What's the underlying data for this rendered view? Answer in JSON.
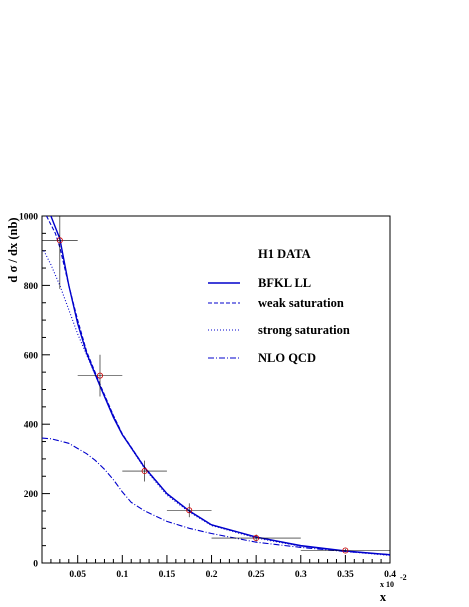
{
  "chart_data": {
    "type": "line",
    "title": "",
    "xlabel": "x",
    "ylabel": "d σ / dx (nb)",
    "x_multiplier_label": "x 10",
    "x_multiplier_exponent": "-2",
    "xlim": [
      0.01,
      0.4
    ],
    "ylim": [
      0,
      1000
    ],
    "xticks": [
      0.05,
      0.1,
      0.15,
      0.2,
      0.25,
      0.3,
      0.35,
      0.4
    ],
    "xtick_labels": [
      "0.05",
      "0.1",
      "0.15",
      "0.2",
      "0.25",
      "0.3",
      "0.35",
      "0.4"
    ],
    "yticks": [
      0,
      200,
      400,
      600,
      800,
      1000
    ],
    "ytick_labels": [
      "0",
      "200",
      "400",
      "600",
      "800",
      "1000"
    ],
    "legend": [
      {
        "label": "H1 DATA",
        "style": "none"
      },
      {
        "label": "BFKL LL",
        "style": "solid"
      },
      {
        "label": "weak saturation",
        "style": "dashed"
      },
      {
        "label": "strong saturation",
        "style": "dotted"
      },
      {
        "label": "NLO QCD",
        "style": "dashdot"
      }
    ],
    "data_points": [
      {
        "x": 0.03,
        "y": 930,
        "xlow": 0.01,
        "xhigh": 0.05,
        "ylow": 790,
        "yhigh": 1000
      },
      {
        "x": 0.075,
        "y": 540,
        "xlow": 0.05,
        "xhigh": 0.1,
        "ylow": 480,
        "yhigh": 600
      },
      {
        "x": 0.125,
        "y": 265,
        "xlow": 0.1,
        "xhigh": 0.15,
        "ylow": 235,
        "yhigh": 295
      },
      {
        "x": 0.175,
        "y": 152,
        "xlow": 0.15,
        "xhigh": 0.2,
        "ylow": 132,
        "yhigh": 172
      },
      {
        "x": 0.25,
        "y": 72,
        "xlow": 0.2,
        "xhigh": 0.3,
        "ylow": 62,
        "yhigh": 82
      },
      {
        "x": 0.35,
        "y": 36,
        "xlow": 0.3,
        "xhigh": 0.4,
        "ylow": 31,
        "yhigh": 41
      }
    ],
    "series": [
      {
        "style": "solid",
        "x": [
          0.02,
          0.03,
          0.04,
          0.05,
          0.06,
          0.075,
          0.09,
          0.1,
          0.125,
          0.15,
          0.175,
          0.2,
          0.25,
          0.3,
          0.35,
          0.4
        ],
        "y": [
          1000,
          935,
          800,
          690,
          605,
          510,
          420,
          370,
          275,
          200,
          150,
          110,
          75,
          50,
          35,
          24
        ]
      },
      {
        "style": "dashed",
        "x": [
          0.015,
          0.025,
          0.03,
          0.04,
          0.05,
          0.06,
          0.075,
          0.09,
          0.1,
          0.125,
          0.15,
          0.175,
          0.2,
          0.25,
          0.3,
          0.35,
          0.4
        ],
        "y": [
          1000,
          950,
          910,
          800,
          700,
          610,
          515,
          425,
          372,
          276,
          200,
          150,
          110,
          74,
          49,
          34,
          23
        ]
      },
      {
        "style": "dotted",
        "x": [
          0.012,
          0.02,
          0.03,
          0.04,
          0.05,
          0.06,
          0.075,
          0.09,
          0.1,
          0.125,
          0.15,
          0.175,
          0.2,
          0.25,
          0.3,
          0.35,
          0.4
        ],
        "y": [
          900,
          860,
          800,
          730,
          660,
          600,
          510,
          425,
          370,
          272,
          196,
          147,
          108,
          72,
          48,
          33,
          22
        ]
      },
      {
        "style": "dashdot",
        "x": [
          0.01,
          0.02,
          0.03,
          0.04,
          0.05,
          0.06,
          0.07,
          0.08,
          0.09,
          0.1,
          0.11,
          0.125,
          0.15,
          0.175,
          0.2,
          0.25,
          0.3,
          0.35,
          0.4
        ],
        "y": [
          360,
          358,
          352,
          345,
          330,
          315,
          295,
          270,
          240,
          205,
          175,
          150,
          120,
          100,
          85,
          60,
          45,
          33,
          24
        ]
      }
    ],
    "grid": false,
    "legend_position": "upper-right"
  },
  "colors": {
    "curve": "#0000cc",
    "axis": "#000000",
    "data_marker": "#cc0000",
    "error_bar": "#000000"
  }
}
